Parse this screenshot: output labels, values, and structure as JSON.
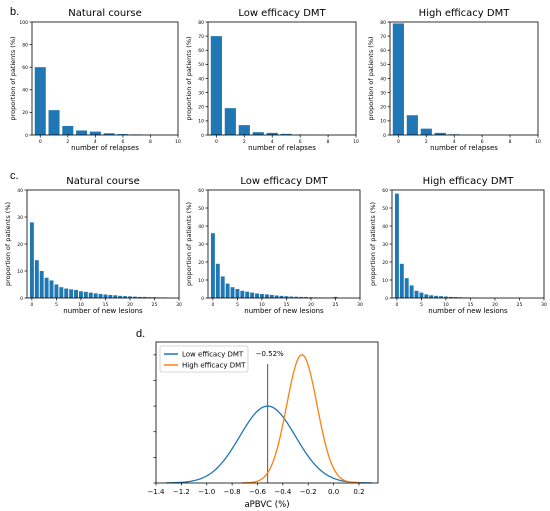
{
  "panel_labels": {
    "b": "b.",
    "c": "c.",
    "d": "d."
  },
  "chart_data": [
    {
      "id": "b1",
      "type": "bar",
      "title": "Natural course",
      "xlabel": "number of relapses",
      "ylabel": "proportion of patients (%)",
      "xlim": [
        -0.6,
        10
      ],
      "ylim": [
        0,
        100
      ],
      "xticks": [
        0,
        2,
        4,
        6,
        8,
        10
      ],
      "yticks": [
        0,
        20,
        40,
        60,
        80,
        100
      ],
      "categories": [
        0,
        1,
        2,
        3,
        4,
        5,
        6,
        7,
        8,
        9
      ],
      "values": [
        60,
        22,
        8,
        4,
        3,
        1.5,
        0.8,
        0.5,
        0.2,
        0.1
      ],
      "color": "#1f77b4"
    },
    {
      "id": "b2",
      "type": "bar",
      "title": "Low efficacy DMT",
      "xlabel": "number of relapses",
      "ylabel": "proportion of patients (%)",
      "xlim": [
        -0.6,
        10
      ],
      "ylim": [
        0,
        80
      ],
      "xticks": [
        0,
        2,
        4,
        6,
        8,
        10
      ],
      "yticks": [
        0,
        10,
        20,
        30,
        40,
        50,
        60,
        70,
        80
      ],
      "categories": [
        0,
        1,
        2,
        3,
        4,
        5,
        6,
        7
      ],
      "values": [
        70,
        19,
        7,
        2,
        1.5,
        0.8,
        0.3,
        0.1
      ],
      "color": "#1f77b4"
    },
    {
      "id": "b3",
      "type": "bar",
      "title": "High efficacy DMT",
      "xlabel": "number of relapses",
      "ylabel": "proportion of patients (%)",
      "xlim": [
        -0.6,
        10
      ],
      "ylim": [
        0,
        80
      ],
      "xticks": [
        0,
        2,
        4,
        6,
        8,
        10
      ],
      "yticks": [
        0,
        10,
        20,
        30,
        40,
        50,
        60,
        70,
        80
      ],
      "categories": [
        0,
        1,
        2,
        3,
        4,
        5
      ],
      "values": [
        79,
        14,
        4.5,
        1.5,
        0.5,
        0.2
      ],
      "color": "#1f77b4"
    },
    {
      "id": "c1",
      "type": "bar",
      "title": "Natural course",
      "xlabel": "number of new lesions",
      "ylabel": "proportion of patients (%)",
      "xlim": [
        -1,
        30
      ],
      "ylim": [
        0,
        40
      ],
      "xticks": [
        0,
        5,
        10,
        15,
        20,
        25,
        30
      ],
      "yticks": [
        0,
        10,
        20,
        30,
        40
      ],
      "categories": [
        0,
        1,
        2,
        3,
        4,
        5,
        6,
        7,
        8,
        9,
        10,
        11,
        12,
        13,
        14,
        15,
        16,
        17,
        18,
        19,
        20,
        21,
        22,
        23,
        24,
        25,
        26,
        27
      ],
      "values": [
        28,
        14,
        10,
        7.5,
        6.5,
        5,
        4,
        3.5,
        3.2,
        3,
        2.5,
        2.3,
        2,
        1.7,
        1.5,
        1.3,
        1.1,
        1,
        0.8,
        0.7,
        0.6,
        0.5,
        0.4,
        0.4,
        0.3,
        0.3,
        0.2,
        0.2
      ],
      "color": "#1f77b4"
    },
    {
      "id": "c2",
      "type": "bar",
      "title": "Low efficacy DMT",
      "xlabel": "number of new lesions",
      "ylabel": "proportion of patients (%)",
      "xlim": [
        -1,
        30
      ],
      "ylim": [
        0,
        60
      ],
      "xticks": [
        0,
        5,
        10,
        15,
        20,
        25,
        30
      ],
      "yticks": [
        0,
        10,
        20,
        30,
        40,
        50,
        60
      ],
      "categories": [
        0,
        1,
        2,
        3,
        4,
        5,
        6,
        7,
        8,
        9,
        10,
        11,
        12,
        13,
        14,
        15,
        16,
        17,
        18,
        19,
        20,
        21,
        22,
        23,
        24,
        25
      ],
      "values": [
        36,
        19,
        12,
        8,
        6,
        5,
        4,
        3.5,
        3,
        2.5,
        2.2,
        2,
        1.7,
        1.4,
        1.2,
        1,
        0.8,
        0.7,
        0.6,
        0.5,
        0.4,
        0.3,
        0.3,
        0.2,
        0.2,
        0.6
      ],
      "color": "#1f77b4"
    },
    {
      "id": "c3",
      "type": "bar",
      "title": "High efficacy DMT",
      "xlabel": "number of new lesions",
      "ylabel": "proportion of patients (%)",
      "xlim": [
        -1,
        30
      ],
      "ylim": [
        0,
        60
      ],
      "xticks": [
        0,
        5,
        10,
        15,
        20,
        25,
        30
      ],
      "yticks": [
        0,
        10,
        20,
        30,
        40,
        50,
        60
      ],
      "categories": [
        0,
        1,
        2,
        3,
        4,
        5,
        6,
        7,
        8,
        9,
        10,
        11,
        12,
        13,
        14,
        15,
        16
      ],
      "values": [
        58,
        19,
        11,
        7,
        4,
        3,
        2,
        1.5,
        1.2,
        1,
        0.8,
        0.6,
        0.5,
        0.4,
        0.3,
        0.2,
        0.2
      ],
      "color": "#1f77b4"
    },
    {
      "id": "d",
      "type": "line",
      "title": "",
      "xlabel": "aPBVC (%)",
      "ylabel": "",
      "xlim": [
        -1.4,
        0.35
      ],
      "ylim": [
        0,
        1.1
      ],
      "xticks": [
        -1.4,
        -1.2,
        -1.0,
        -0.8,
        -0.6,
        -0.4,
        -0.2,
        0.0,
        0.2
      ],
      "xtick_labels": [
        "−1.4",
        "−1.2",
        "−1.0",
        "−0.8",
        "−0.6",
        "−0.4",
        "−0.2",
        "0.0",
        "0.2"
      ],
      "vline": {
        "x": -0.52,
        "label": "−0.52%"
      },
      "legend_position": "top-left",
      "series": [
        {
          "name": "Low efficacy DMT",
          "color": "#1f77b4",
          "mean": -0.52,
          "sd": 0.22,
          "peak": 0.6,
          "x_range": [
            -1.32,
            0.3
          ]
        },
        {
          "name": "High efficacy DMT",
          "color": "#ff7f0e",
          "mean": -0.25,
          "sd": 0.12,
          "peak": 1.0,
          "x_range": [
            -0.72,
            0.22
          ]
        }
      ]
    }
  ]
}
